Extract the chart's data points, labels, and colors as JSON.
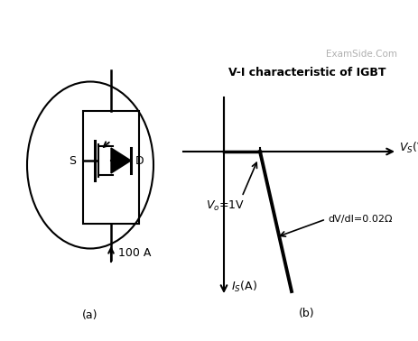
{
  "background_color": "#ffffff",
  "fig_width": 4.64,
  "fig_height": 3.78,
  "dpi": 100,
  "label_a": "(a)",
  "label_b": "(b)",
  "label_S": "S",
  "label_D": "D",
  "label_100A": "100 A",
  "label_Is": "$I_S$(A)",
  "label_Vs": "$V_S$(Volt)",
  "label_Vo": "$V_o$=1V",
  "label_dVdI": "dV/dI=0.02Ω",
  "label_VI": "V-I characteristic of IGBT",
  "label_examside": "ExamSide.Com",
  "font_size_main": 9,
  "font_size_small": 8,
  "font_size_examside": 7.5,
  "font_size_VI": 9
}
